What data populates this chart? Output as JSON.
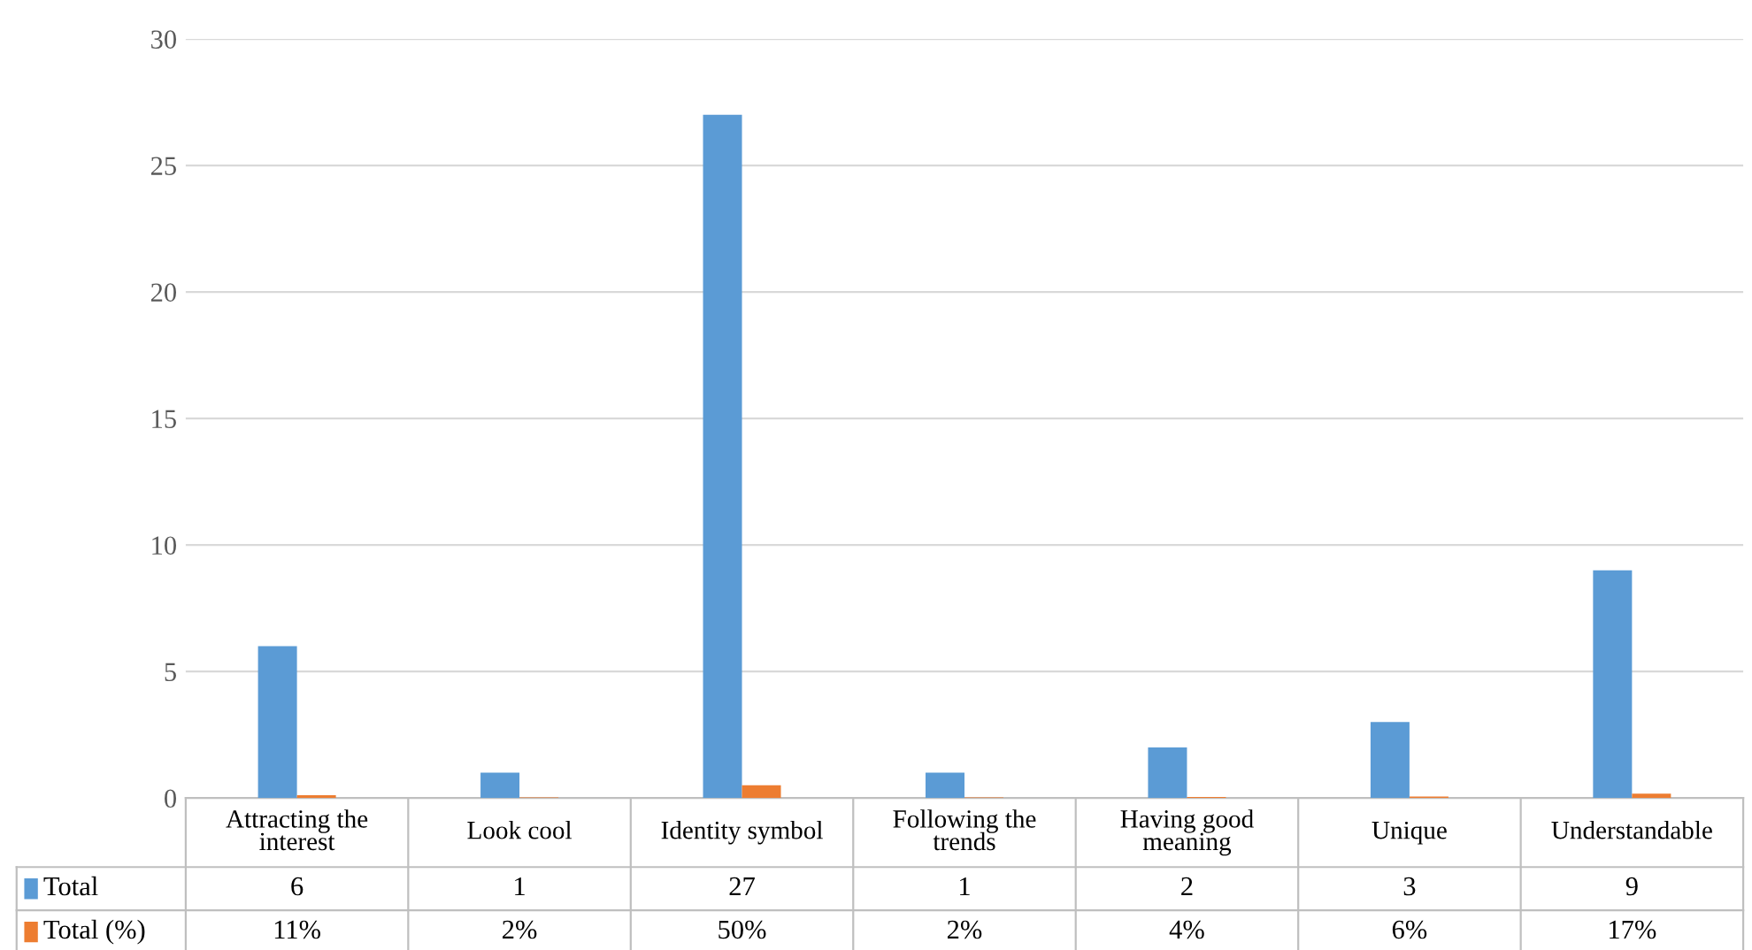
{
  "chart_data": {
    "type": "bar",
    "categories": [
      "Attracting the interest",
      "Look cool",
      "Identity symbol",
      "Following the trends",
      "Having good meaning",
      "Unique",
      "Understandable"
    ],
    "series": [
      {
        "name": "Total",
        "color": "#5b9bd5",
        "values": [
          6,
          1,
          27,
          1,
          2,
          3,
          9
        ],
        "value_labels": [
          "6",
          "1",
          "27",
          "1",
          "2",
          "3",
          "9"
        ]
      },
      {
        "name": "Total (%)",
        "color": "#ed7d31",
        "values": [
          0.11,
          0.02,
          0.5,
          0.02,
          0.04,
          0.06,
          0.17
        ],
        "value_labels": [
          "11%",
          "2%",
          "50%",
          "2%",
          "4%",
          "6%",
          "17%"
        ]
      }
    ],
    "ylim": [
      0,
      30
    ],
    "yticks": [
      0,
      5,
      10,
      15,
      20,
      25,
      30
    ],
    "grid": "y",
    "legend": "bottom"
  }
}
